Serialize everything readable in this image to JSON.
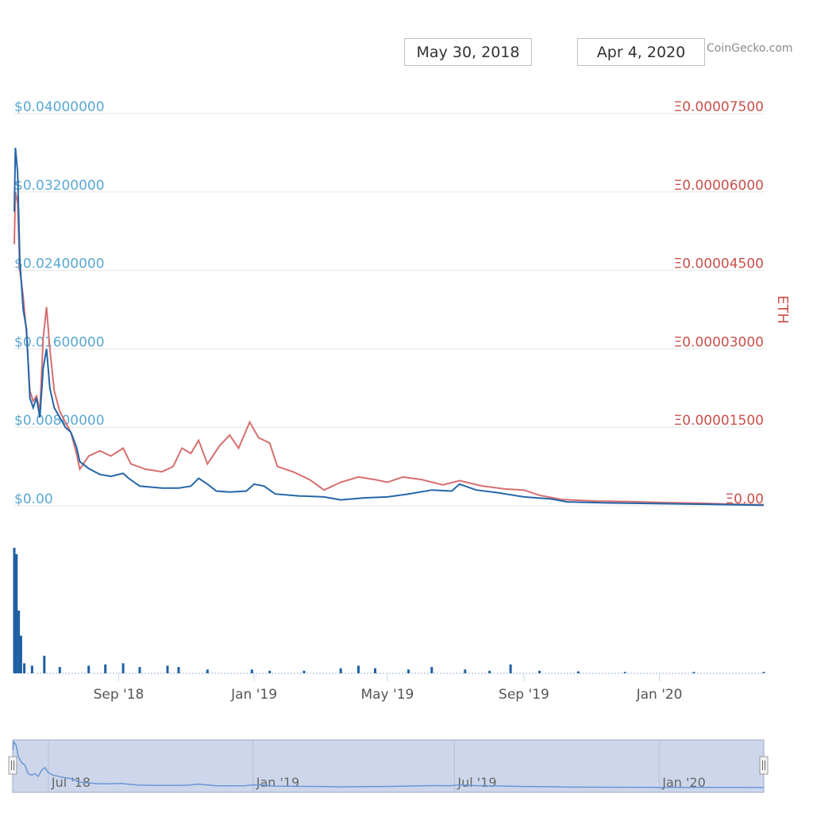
{
  "header": {
    "range_from": "May 30, 2018",
    "range_to": "Apr 4, 2020",
    "credit": "CoinGecko.com"
  },
  "colors": {
    "usd_line": "#2466a8",
    "eth_line": "#d66e6e",
    "usd_axis": "#5ba8d3",
    "eth_axis": "#c9504a",
    "volume": "#1f5fa3",
    "navigator_fill": "#cdd6ea",
    "navigator_line": "#6a97d6"
  },
  "chart_data": {
    "type": "line",
    "title": "",
    "x_range": [
      "2018-05-30",
      "2020-04-04"
    ],
    "y_left": {
      "unit": "USD",
      "ylim": [
        0,
        0.04
      ],
      "tick_values": [
        0,
        0.008,
        0.016,
        0.024,
        0.032,
        0.04
      ],
      "tick_labels": [
        "$0.00",
        "$0.00800000",
        "$0.01600000",
        "$0.02400000",
        "$0.03200000",
        "$0.04000000"
      ]
    },
    "y_right": {
      "label": "ETH",
      "ylim": [
        0,
        7.5e-05
      ],
      "tick_values": [
        0,
        1.5e-05,
        3e-05,
        4.5e-05,
        6e-05,
        7.5e-05
      ],
      "tick_labels": [
        "Ξ0.00",
        "Ξ0.00001500",
        "Ξ0.00003000",
        "Ξ0.00004500",
        "Ξ0.00006000",
        "Ξ0.00007500"
      ]
    },
    "x_ticks": [
      {
        "date": "2018-09-01",
        "label": "Sep '18"
      },
      {
        "date": "2019-01-01",
        "label": "Jan '19"
      },
      {
        "date": "2019-05-01",
        "label": "May '19"
      },
      {
        "date": "2019-09-01",
        "label": "Sep '19"
      },
      {
        "date": "2020-01-01",
        "label": "Jan '20"
      }
    ],
    "navigator_ticks": [
      {
        "date": "2018-07-01",
        "label": "Jul '18"
      },
      {
        "date": "2019-01-01",
        "label": "Jan '19"
      },
      {
        "date": "2019-07-01",
        "label": "Jul '19"
      },
      {
        "date": "2020-01-01",
        "label": "Jan '20"
      }
    ],
    "series": [
      {
        "unit": "USD",
        "axis": "left",
        "points": [
          [
            "2018-05-30",
            0.03
          ],
          [
            "2018-05-31",
            0.0365
          ],
          [
            "2018-06-02",
            0.034
          ],
          [
            "2018-06-04",
            0.025
          ],
          [
            "2018-06-07",
            0.02
          ],
          [
            "2018-06-10",
            0.018
          ],
          [
            "2018-06-13",
            0.011
          ],
          [
            "2018-06-16",
            0.01
          ],
          [
            "2018-06-19",
            0.011
          ],
          [
            "2018-06-22",
            0.009
          ],
          [
            "2018-06-25",
            0.014
          ],
          [
            "2018-06-28",
            0.016
          ],
          [
            "2018-07-01",
            0.012
          ],
          [
            "2018-07-05",
            0.01
          ],
          [
            "2018-07-10",
            0.009
          ],
          [
            "2018-07-15",
            0.008
          ],
          [
            "2018-07-20",
            0.0075
          ],
          [
            "2018-07-25",
            0.006
          ],
          [
            "2018-07-28",
            0.0045
          ],
          [
            "2018-08-05",
            0.0038
          ],
          [
            "2018-08-15",
            0.0032
          ],
          [
            "2018-08-25",
            0.003
          ],
          [
            "2018-09-05",
            0.0033
          ],
          [
            "2018-09-10",
            0.0028
          ],
          [
            "2018-09-20",
            0.002
          ],
          [
            "2018-10-10",
            0.0018
          ],
          [
            "2018-10-25",
            0.0018
          ],
          [
            "2018-11-05",
            0.002
          ],
          [
            "2018-11-12",
            0.0028
          ],
          [
            "2018-11-20",
            0.0022
          ],
          [
            "2018-11-28",
            0.0015
          ],
          [
            "2018-12-10",
            0.0014
          ],
          [
            "2018-12-25",
            0.0015
          ],
          [
            "2019-01-01",
            0.0022
          ],
          [
            "2019-01-10",
            0.002
          ],
          [
            "2019-01-20",
            0.0012
          ],
          [
            "2019-02-10",
            0.001
          ],
          [
            "2019-03-05",
            0.0009
          ],
          [
            "2019-03-20",
            0.0006
          ],
          [
            "2019-04-10",
            0.0008
          ],
          [
            "2019-05-01",
            0.0009
          ],
          [
            "2019-05-20",
            0.0012
          ],
          [
            "2019-06-10",
            0.0016
          ],
          [
            "2019-06-28",
            0.0015
          ],
          [
            "2019-07-05",
            0.0022
          ],
          [
            "2019-07-20",
            0.0016
          ],
          [
            "2019-08-10",
            0.0013
          ],
          [
            "2019-09-01",
            0.0009
          ],
          [
            "2019-09-25",
            0.0007
          ],
          [
            "2019-10-10",
            0.0004
          ],
          [
            "2019-11-10",
            0.0003
          ],
          [
            "2019-12-10",
            0.00025
          ],
          [
            "2020-01-10",
            0.0002
          ],
          [
            "2020-02-10",
            0.00015
          ],
          [
            "2020-03-10",
            0.0001
          ],
          [
            "2020-04-04",
            5e-05
          ]
        ]
      },
      {
        "unit": "ETH",
        "axis": "right",
        "points": [
          [
            "2018-05-30",
            5e-05
          ],
          [
            "2018-05-31",
            6e-05
          ],
          [
            "2018-06-02",
            5.8e-05
          ],
          [
            "2018-06-04",
            4.5e-05
          ],
          [
            "2018-06-07",
            4e-05
          ],
          [
            "2018-06-10",
            3.3e-05
          ],
          [
            "2018-06-13",
            2.2e-05
          ],
          [
            "2018-06-16",
            2e-05
          ],
          [
            "2018-06-19",
            2.1e-05
          ],
          [
            "2018-06-22",
            1.8e-05
          ],
          [
            "2018-06-25",
            3.2e-05
          ],
          [
            "2018-06-28",
            3.8e-05
          ],
          [
            "2018-07-01",
            3e-05
          ],
          [
            "2018-07-05",
            2.2e-05
          ],
          [
            "2018-07-10",
            1.8e-05
          ],
          [
            "2018-07-15",
            1.6e-05
          ],
          [
            "2018-07-20",
            1.4e-05
          ],
          [
            "2018-07-25",
            1e-05
          ],
          [
            "2018-07-28",
            7e-06
          ],
          [
            "2018-08-05",
            9.5e-06
          ],
          [
            "2018-08-15",
            1.05e-05
          ],
          [
            "2018-08-25",
            9.5e-06
          ],
          [
            "2018-09-05",
            1.1e-05
          ],
          [
            "2018-09-12",
            8e-06
          ],
          [
            "2018-09-25",
            7e-06
          ],
          [
            "2018-10-10",
            6.5e-06
          ],
          [
            "2018-10-20",
            7.5e-06
          ],
          [
            "2018-10-28",
            1.1e-05
          ],
          [
            "2018-11-05",
            1e-05
          ],
          [
            "2018-11-12",
            1.25e-05
          ],
          [
            "2018-11-20",
            8e-06
          ],
          [
            "2018-12-01",
            1.15e-05
          ],
          [
            "2018-12-10",
            1.35e-05
          ],
          [
            "2018-12-18",
            1.1e-05
          ],
          [
            "2018-12-28",
            1.6e-05
          ],
          [
            "2019-01-05",
            1.3e-05
          ],
          [
            "2019-01-15",
            1.2e-05
          ],
          [
            "2019-01-22",
            7.5e-06
          ],
          [
            "2019-02-05",
            6.5e-06
          ],
          [
            "2019-02-20",
            5e-06
          ],
          [
            "2019-03-05",
            3e-06
          ],
          [
            "2019-03-20",
            4.5e-06
          ],
          [
            "2019-04-05",
            5.5e-06
          ],
          [
            "2019-04-20",
            5e-06
          ],
          [
            "2019-05-01",
            4.5e-06
          ],
          [
            "2019-05-15",
            5.5e-06
          ],
          [
            "2019-06-01",
            5e-06
          ],
          [
            "2019-06-20",
            4e-06
          ],
          [
            "2019-07-05",
            4.8e-06
          ],
          [
            "2019-07-25",
            3.8e-06
          ],
          [
            "2019-08-15",
            3.2e-06
          ],
          [
            "2019-09-01",
            3e-06
          ],
          [
            "2019-09-15",
            2e-06
          ],
          [
            "2019-10-05",
            1.2e-06
          ],
          [
            "2019-11-05",
            9e-07
          ],
          [
            "2019-12-05",
            8e-07
          ],
          [
            "2020-01-05",
            6e-07
          ],
          [
            "2020-02-05",
            5e-07
          ],
          [
            "2020-03-05",
            3e-07
          ],
          [
            "2020-04-04",
            2e-07
          ]
        ]
      }
    ],
    "volume": {
      "points": [
        [
          "2018-05-30",
          1.0
        ],
        [
          "2018-06-01",
          0.95
        ],
        [
          "2018-06-03",
          0.5
        ],
        [
          "2018-06-05",
          0.3
        ],
        [
          "2018-06-08",
          0.08
        ],
        [
          "2018-06-15",
          0.06
        ],
        [
          "2018-06-26",
          0.14
        ],
        [
          "2018-07-10",
          0.05
        ],
        [
          "2018-08-05",
          0.06
        ],
        [
          "2018-08-20",
          0.07
        ],
        [
          "2018-09-05",
          0.08
        ],
        [
          "2018-09-20",
          0.05
        ],
        [
          "2018-10-15",
          0.06
        ],
        [
          "2018-10-25",
          0.05
        ],
        [
          "2018-11-20",
          0.03
        ],
        [
          "2018-12-30",
          0.03
        ],
        [
          "2019-01-15",
          0.02
        ],
        [
          "2019-02-15",
          0.02
        ],
        [
          "2019-03-20",
          0.04
        ],
        [
          "2019-04-05",
          0.06
        ],
        [
          "2019-04-20",
          0.04
        ],
        [
          "2019-05-20",
          0.03
        ],
        [
          "2019-06-10",
          0.05
        ],
        [
          "2019-07-10",
          0.03
        ],
        [
          "2019-08-01",
          0.02
        ],
        [
          "2019-08-20",
          0.07
        ],
        [
          "2019-09-15",
          0.02
        ],
        [
          "2019-10-20",
          0.015
        ],
        [
          "2019-12-01",
          0.01
        ],
        [
          "2020-02-01",
          0.01
        ],
        [
          "2020-04-04",
          0.01
        ]
      ]
    }
  }
}
